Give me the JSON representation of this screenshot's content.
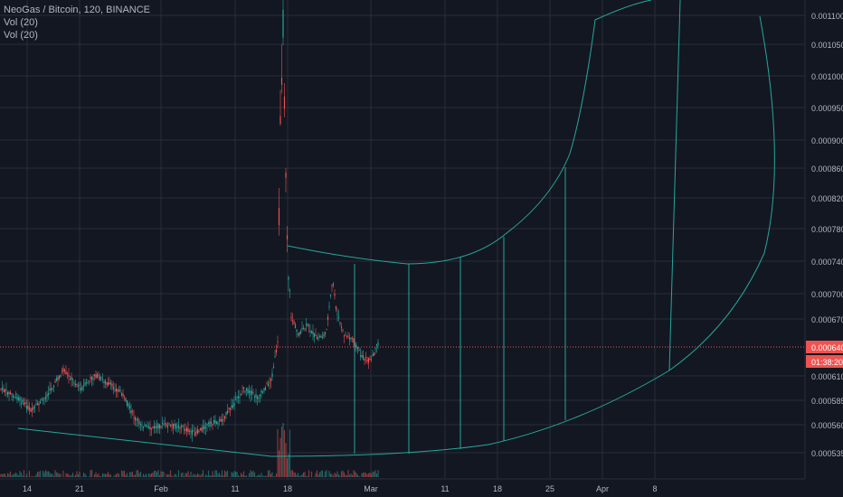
{
  "legend": {
    "symbol": "NeoGas / Bitcoin, 120, BINANCE",
    "vol1": "Vol (20)",
    "vol2": "Vol (20)"
  },
  "colors": {
    "background": "#131722",
    "grid": "#2a2e39",
    "up": "#26a69a",
    "down": "#ef5350",
    "drawing": "#26a69a",
    "current_price": "#ef5350",
    "axis_text": "#b2b5be"
  },
  "chart_data": {
    "type": "candlestick",
    "price_axis": {
      "ticks": [
        "0.001100",
        "0.001050",
        "0.001000",
        "0.000950",
        "0.000900",
        "0.000860",
        "0.000820",
        "0.000780",
        "0.000740",
        "0.000700",
        "0.000670",
        "0.000610",
        "0.000585",
        "0.000560",
        "0.000535"
      ]
    },
    "time_axis": {
      "ticks": [
        "14",
        "21",
        "Feb",
        "11",
        "18",
        "Mar",
        "11",
        "18",
        "25",
        "Apr",
        "8"
      ]
    },
    "current_price": {
      "label": "0.000640",
      "countdown": "01:38:20"
    },
    "volume_indicators": [
      "Vol (20)",
      "Vol (20)"
    ],
    "grid": true
  }
}
